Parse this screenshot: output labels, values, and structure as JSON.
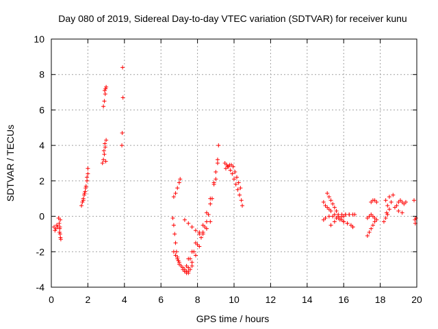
{
  "chart_data": {
    "type": "scatter",
    "title": "Day 080 of 2019, Sidereal Day-to-day VTEC variation (SDTVAR) for receiver kunu",
    "xlabel": "GPS time / hours",
    "ylabel": "SDTVAR / TECUs",
    "xlim": [
      0,
      20
    ],
    "ylim": [
      -4,
      10
    ],
    "xticks": [
      "0",
      "2",
      "4",
      "6",
      "8",
      "10",
      "12",
      "14",
      "16",
      "18",
      "20"
    ],
    "yticks": [
      "-4",
      "-2",
      "0",
      "2",
      "4",
      "6",
      "8",
      "10"
    ],
    "grid": true,
    "marker": "plus",
    "marker_color": "#ff0000",
    "series": [
      {
        "name": "t0.1",
        "x": [
          0.15,
          0.2,
          0.25,
          0.3,
          0.35
        ],
        "y": [
          -0.6,
          -0.8,
          -0.7,
          -0.5,
          -0.6
        ]
      },
      {
        "name": "t0.4",
        "x": [
          0.4,
          0.43,
          0.46,
          0.48,
          0.5,
          0.52,
          0.45,
          0.47,
          0.49
        ],
        "y": [
          -0.1,
          -0.4,
          -0.7,
          -1.0,
          -1.2,
          -1.3,
          -0.9,
          -0.6,
          -0.2
        ]
      },
      {
        "name": "t1.7",
        "x": [
          1.65,
          1.7,
          1.75,
          1.8,
          1.85,
          1.9,
          1.95,
          2.0,
          1.75,
          1.82,
          1.88,
          1.95,
          2.0
        ],
        "y": [
          0.6,
          0.8,
          1.0,
          1.2,
          1.4,
          1.7,
          2.0,
          2.4,
          0.9,
          1.3,
          1.6,
          2.2,
          2.7
        ]
      },
      {
        "name": "t2.9a",
        "x": [
          2.85,
          2.9,
          2.95,
          3.0,
          2.92,
          2.97
        ],
        "y": [
          6.2,
          6.5,
          6.9,
          7.3,
          7.1,
          7.2
        ]
      },
      {
        "name": "t2.9b",
        "x": [
          2.8,
          2.85,
          2.9,
          2.95,
          3.0,
          2.88,
          2.93,
          2.98
        ],
        "y": [
          3.0,
          3.2,
          3.5,
          3.9,
          4.3,
          3.7,
          4.1,
          3.1
        ]
      },
      {
        "name": "t3.9",
        "x": [
          3.9,
          3.92,
          3.88,
          3.86
        ],
        "y": [
          8.4,
          6.7,
          4.7,
          4.0
        ]
      },
      {
        "name": "t6.7a",
        "x": [
          6.7,
          6.8,
          6.9,
          7.0,
          7.05
        ],
        "y": [
          1.1,
          1.3,
          1.6,
          1.9,
          2.1
        ]
      },
      {
        "name": "t6.7b",
        "x": [
          6.65,
          6.7,
          6.75,
          6.8,
          6.85,
          6.9,
          6.95,
          7.0,
          7.1,
          7.2,
          7.3,
          7.4,
          7.5,
          7.6,
          7.7
        ],
        "y": [
          -0.1,
          -0.5,
          -1.0,
          -1.5,
          -2.0,
          -2.3,
          -2.5,
          -2.7,
          -2.8,
          -2.9,
          -3.0,
          -3.1,
          -3.1,
          -3.0,
          -2.8
        ]
      },
      {
        "name": "t7.0",
        "x": [
          6.7,
          6.8,
          6.9,
          7.0,
          7.1,
          7.2,
          7.3,
          7.4,
          7.5
        ],
        "y": [
          -2.0,
          -2.2,
          -2.4,
          -2.6,
          -2.8,
          -3.0,
          -3.1,
          -3.2,
          -3.2
        ]
      },
      {
        "name": "t7.3",
        "x": [
          7.3,
          7.5,
          7.7,
          7.9,
          8.1,
          8.3,
          8.5,
          8.7,
          8.9,
          9.1,
          9.15
        ],
        "y": [
          -3.1,
          -2.9,
          -2.6,
          -2.2,
          -1.7,
          -1.0,
          -0.3,
          0.7,
          1.8,
          3.2,
          4.0
        ]
      },
      {
        "name": "t7.4",
        "x": [
          7.4,
          7.6,
          7.8,
          8.0,
          8.2,
          8.4,
          8.6,
          8.8,
          9.0,
          9.1
        ],
        "y": [
          -2.8,
          -2.4,
          -2.0,
          -1.6,
          -1.2,
          -0.6,
          0.1,
          1.0,
          2.1,
          3.0
        ]
      },
      {
        "name": "t7.5",
        "x": [
          7.5,
          7.7,
          7.9,
          8.1,
          8.3,
          8.5,
          8.7,
          8.9,
          9.0
        ],
        "y": [
          -2.4,
          -2.0,
          -1.5,
          -1.0,
          -0.5,
          0.2,
          1.0,
          1.9,
          2.5
        ]
      },
      {
        "name": "t7.3c",
        "x": [
          7.3,
          7.5,
          7.7,
          7.9,
          8.1,
          8.3,
          8.5,
          8.7
        ],
        "y": [
          -0.2,
          -0.4,
          -0.6,
          -0.8,
          -0.9,
          -0.9,
          -0.7,
          -0.3
        ]
      },
      {
        "name": "t9.5",
        "x": [
          9.5,
          9.6,
          9.7,
          9.8,
          9.9,
          10.0,
          10.1,
          10.2,
          10.3,
          10.4,
          10.45
        ],
        "y": [
          3.0,
          2.9,
          2.8,
          2.6,
          2.4,
          2.1,
          1.8,
          1.5,
          1.2,
          0.9,
          0.6
        ]
      },
      {
        "name": "t9.6",
        "x": [
          9.55,
          9.65,
          9.75,
          9.85,
          9.95,
          10.05,
          10.15,
          10.25,
          10.35
        ],
        "y": [
          2.7,
          2.8,
          2.9,
          2.9,
          2.8,
          2.5,
          2.2,
          1.9,
          1.6
        ]
      },
      {
        "name": "t14.9a",
        "x": [
          14.9,
          15.0,
          15.1,
          15.2,
          15.3,
          15.5,
          15.7,
          15.9,
          16.0,
          16.1,
          16.3
        ],
        "y": [
          0.8,
          0.6,
          0.5,
          0.4,
          0.3,
          0.1,
          0.0,
          0.1,
          0.0,
          0.1,
          0.1
        ]
      },
      {
        "name": "t15.1",
        "x": [
          15.1,
          15.2,
          15.3,
          15.4,
          15.5,
          15.6,
          15.7,
          15.8,
          15.9,
          16.0,
          16.2,
          16.5
        ],
        "y": [
          1.3,
          1.1,
          0.9,
          0.7,
          0.5,
          0.3,
          0.1,
          -0.1,
          -0.2,
          -0.3,
          -0.4,
          -0.6
        ]
      },
      {
        "name": "t14.9b",
        "x": [
          14.9,
          15.0,
          15.2,
          15.4,
          15.6,
          15.8,
          16.0,
          16.2,
          16.4,
          16.5
        ],
        "y": [
          -0.2,
          -0.1,
          0.0,
          0.0,
          -0.1,
          -0.2,
          -0.3,
          -0.4,
          -0.5,
          -0.6
        ]
      },
      {
        "name": "t15.5",
        "x": [
          15.3,
          15.5,
          15.7,
          15.9,
          16.1,
          16.3,
          16.5,
          16.6
        ],
        "y": [
          -0.5,
          -0.3,
          -0.1,
          0.0,
          0.1,
          0.1,
          0.1,
          0.1
        ]
      },
      {
        "name": "t17.3",
        "x": [
          17.3,
          17.4,
          17.5,
          17.6,
          17.7,
          17.8
        ],
        "y": [
          -0.1,
          0.0,
          0.1,
          0.0,
          -0.1,
          -0.2
        ]
      },
      {
        "name": "t17.4",
        "x": [
          17.3,
          17.4,
          17.5,
          17.6,
          17.7
        ],
        "y": [
          -1.1,
          -0.9,
          -0.7,
          -0.5,
          -0.3
        ]
      },
      {
        "name": "t17.5",
        "x": [
          17.5,
          17.6,
          17.7,
          17.8
        ],
        "y": [
          0.8,
          0.9,
          0.9,
          0.8
        ]
      },
      {
        "name": "t18.3",
        "x": [
          18.2,
          18.3,
          18.4,
          18.5,
          18.6,
          18.7,
          18.3,
          18.4,
          18.5,
          18.35
        ],
        "y": [
          -0.3,
          -0.1,
          0.1,
          0.4,
          0.8,
          1.2,
          0.9,
          0.6,
          1.1,
          0.2
        ]
      },
      {
        "name": "t18.8",
        "x": [
          18.8,
          18.9,
          19.0,
          19.1,
          19.2,
          19.3,
          19.4,
          19.0,
          19.2
        ],
        "y": [
          0.5,
          0.6,
          0.8,
          0.9,
          0.8,
          0.7,
          0.8,
          0.3,
          0.2
        ]
      },
      {
        "name": "t19.7",
        "x": [
          19.85,
          19.9,
          19.92,
          19.95
        ],
        "y": [
          0.9,
          -0.2,
          -0.4,
          -0.1
        ]
      }
    ]
  }
}
